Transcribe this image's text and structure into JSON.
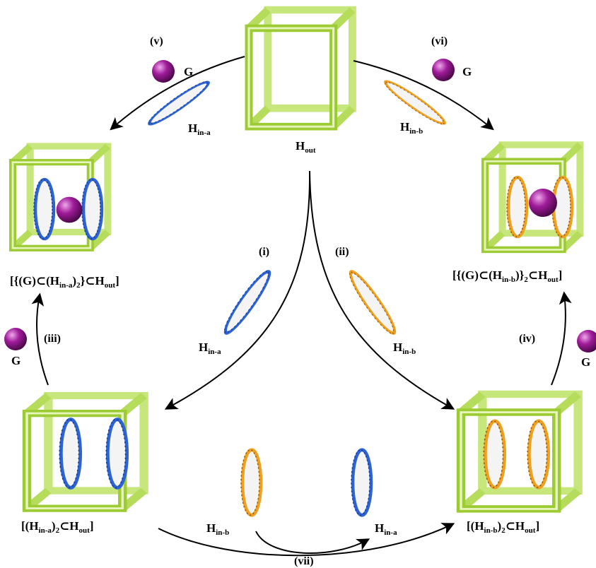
{
  "colors": {
    "cage_light": "#d6ef8f",
    "cage_mid": "#a6cf3a",
    "cage_dark": "#78a81c",
    "ring_blue": "#2d63d2",
    "ring_orange": "#f0a020",
    "ring_face": "#f4f4f4",
    "ball_magenta": "#8e1789",
    "arrow": "#000000"
  },
  "icons": {
    "cage": "green-cube-frame-icon",
    "ring_a": "blue-ring-icon",
    "ring_b": "orange-ring-icon",
    "guest": "magenta-sphere-icon"
  },
  "labels": {
    "h_out": {
      "base": "H",
      "sub": "out"
    },
    "h_in_a_left": {
      "base": "H",
      "sub": "in-a"
    },
    "h_in_b_right": {
      "base": "H",
      "sub": "in-b"
    },
    "h_in_a_mid": {
      "base": "H",
      "sub": "in-a"
    },
    "h_in_b_mid": {
      "base": "H",
      "sub": "in-b"
    },
    "h_in_b_bottom": {
      "base": "H",
      "sub": "in-b"
    },
    "h_in_a_bottom": {
      "base": "H",
      "sub": "in-a"
    },
    "g_v": "G",
    "g_vi": "G",
    "g_iii": "G",
    "g_iv": "G"
  },
  "steps": {
    "i": "(i)",
    "ii": "(ii)",
    "iii": "(iii)",
    "iv": "(iv)",
    "v": "(v)",
    "vi": "(vi)",
    "vii": "(vii)"
  },
  "complexes": {
    "top_left": {
      "p1": "[{(G)⊂(H",
      "s1": "in-a",
      "p2": ")",
      "s2": "2",
      "p3": "}⊂H",
      "s3": "out",
      "p4": "]"
    },
    "top_right": {
      "p1": "[{(G)⊂(H",
      "s1": "in-b",
      "p2": ")}",
      "s2": "2",
      "p3": "⊂H",
      "s3": "out",
      "p4": "]"
    },
    "bottom_left": {
      "p1": "[(H",
      "s1": "in-a",
      "p2": ")",
      "s2": "2",
      "p3": "⊂H",
      "s3": "out",
      "p4": "]"
    },
    "bottom_right": {
      "p1": "[(H",
      "s1": "in-b",
      "p2": ")",
      "s2": "2",
      "p3": "⊂H",
      "s3": "out",
      "p4": "]"
    }
  }
}
